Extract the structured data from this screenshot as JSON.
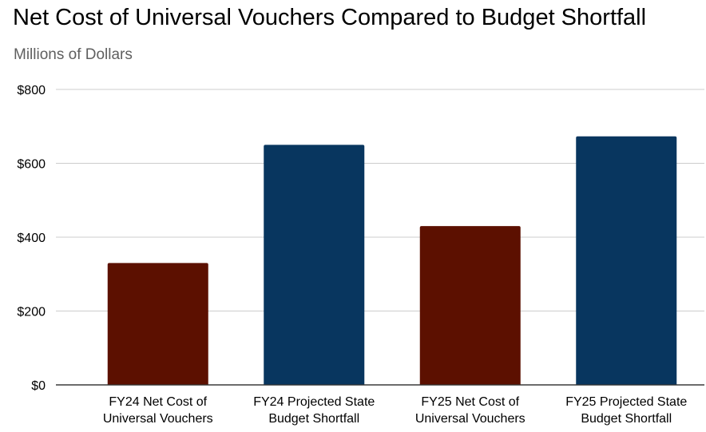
{
  "chart_data": {
    "type": "bar",
    "title": "Net Cost of Universal Vouchers Compared to Budget Shortfall",
    "subtitle": "Millions of Dollars",
    "categories": [
      [
        "FY24 Net Cost of",
        "Universal Vouchers"
      ],
      [
        "FY24 Projected State",
        "Budget Shortfall"
      ],
      [
        "FY25 Net Cost of",
        "Universal Vouchers"
      ],
      [
        "FY25 Projected State",
        "Budget Shortfall"
      ]
    ],
    "values": [
      330,
      650,
      430,
      673
    ],
    "bar_colors": [
      "#5c1000",
      "#08365f",
      "#5c1000",
      "#08365f"
    ],
    "yticks": [
      "$0",
      "$200",
      "$400",
      "$600",
      "$800"
    ],
    "ytick_values": [
      0,
      200,
      400,
      600,
      800
    ],
    "ylim": [
      0,
      800
    ],
    "grid": true,
    "legend": "none"
  }
}
